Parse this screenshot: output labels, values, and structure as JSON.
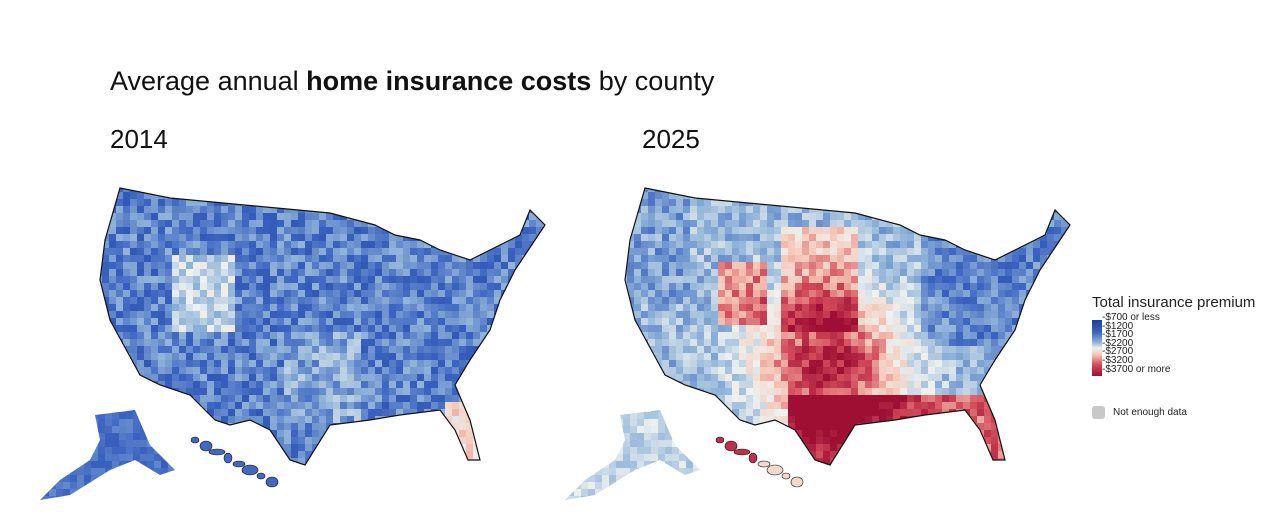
{
  "title": {
    "prefix": "Average annual ",
    "bold": "home insurance costs",
    "suffix": " by county"
  },
  "maps": [
    {
      "year": "2014",
      "palette": "mostly-blue"
    },
    {
      "year": "2025",
      "palette": "blue-north-red-south-central"
    }
  ],
  "legend": {
    "title": "Total insurance premium",
    "ticks": [
      "$700 or less",
      "$1200",
      "$1700",
      "$2200",
      "$2700",
      "$3200",
      "$3700 or more"
    ],
    "colors": [
      "#1f3f9a",
      "#3a62c0",
      "#8fb3d8",
      "#eef2ef",
      "#f6c6b6",
      "#d24a5a",
      "#9e0f33"
    ],
    "no_data_label": "Not enough data",
    "no_data_color": "#c8c8c8"
  }
}
